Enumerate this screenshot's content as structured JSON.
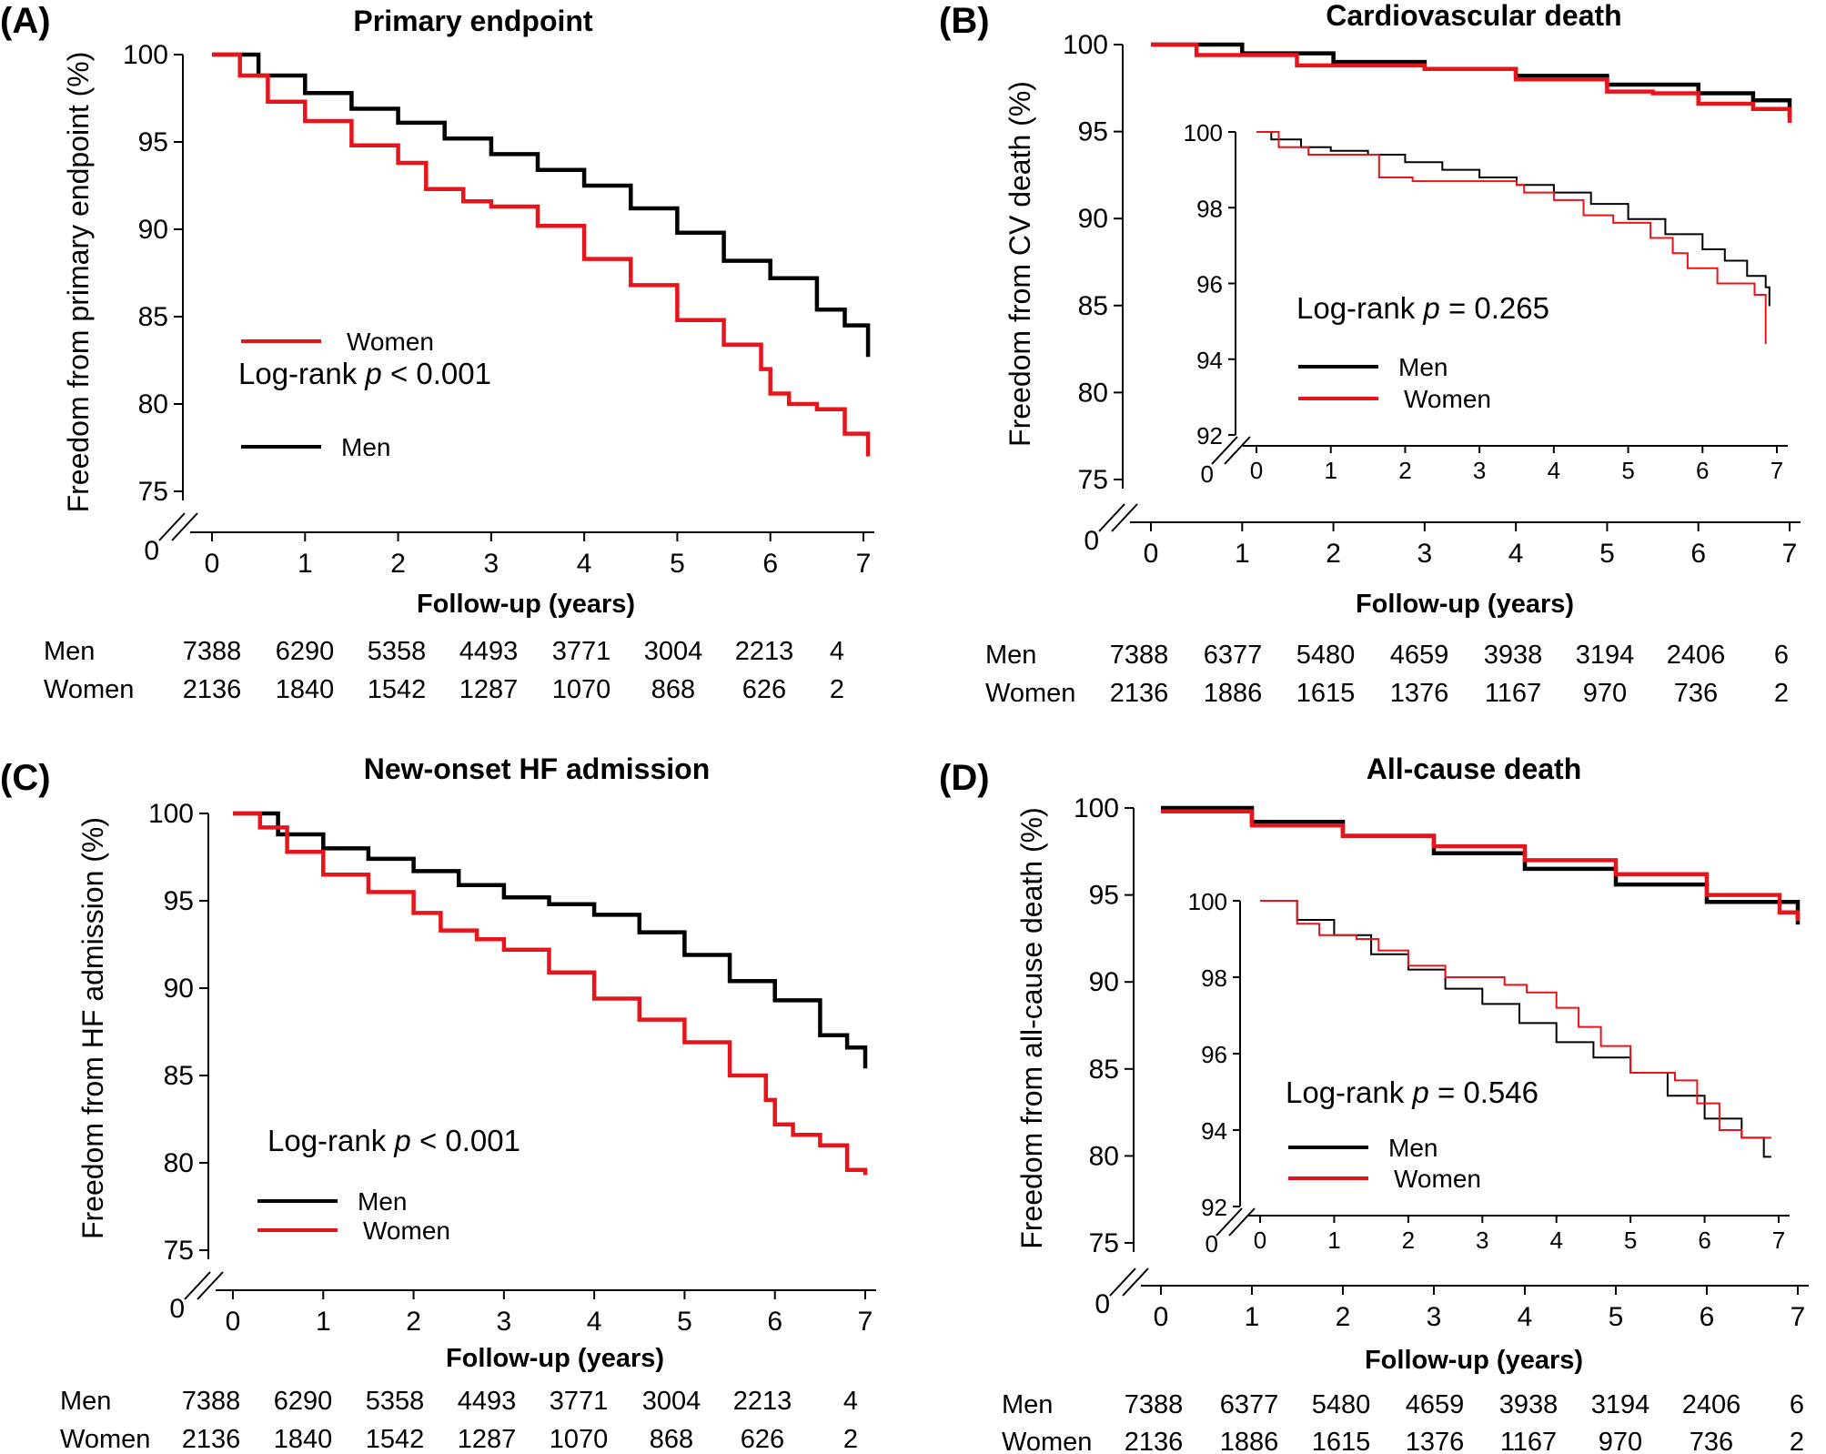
{
  "colors": {
    "men": "#000000",
    "women": "#e8141b"
  },
  "chart_data": [
    {
      "type": "line",
      "letter": "(A)",
      "title": "Primary endpoint",
      "ylabel": "Freedom from primary endpoint (%)",
      "xlabel": "Follow-up (years)",
      "xlim": [
        0,
        7
      ],
      "ylim": [
        75,
        100
      ],
      "y_ticks": [
        "100",
        "95",
        "90",
        "85",
        "80",
        "75"
      ],
      "y_break_label": "0",
      "x_ticks": [
        "0",
        "1",
        "2",
        "3",
        "4",
        "5",
        "6",
        "7"
      ],
      "pvalue": {
        "prefix": "Log-rank ",
        "p": "p",
        "suffix": " < 0.001"
      },
      "legend": [
        "Men",
        "Women"
      ],
      "series": [
        {
          "name": "Men",
          "x": [
            0,
            0.5,
            1,
            1.5,
            2,
            2.5,
            3,
            3.5,
            4,
            4.5,
            5,
            5.5,
            6,
            6.5,
            6.8,
            7.05
          ],
          "y": [
            100,
            98.8,
            97.8,
            96.9,
            96.1,
            95.2,
            94.3,
            93.4,
            92.5,
            91.2,
            89.8,
            88.2,
            87.2,
            85.4,
            84.5,
            82.7
          ]
        },
        {
          "name": "Women",
          "x": [
            0,
            0.3,
            0.6,
            1,
            1.5,
            2,
            2.3,
            2.7,
            3,
            3.5,
            4,
            4.5,
            5,
            5.5,
            5.9,
            6.0,
            6.2,
            6.5,
            6.8,
            7.0,
            7.05
          ],
          "y": [
            100,
            98.8,
            97.3,
            96.2,
            94.8,
            93.8,
            92.3,
            91.6,
            91.3,
            90.2,
            88.3,
            86.8,
            84.8,
            83.4,
            82.0,
            80.6,
            80.0,
            79.7,
            78.3,
            78.3,
            77.0
          ]
        }
      ],
      "risk_table": {
        "rows": [
          {
            "label": "Men",
            "values": [
              "7388",
              "6290",
              "5358",
              "4493",
              "3771",
              "3004",
              "2213",
              "4"
            ]
          },
          {
            "label": "Women",
            "values": [
              "2136",
              "1840",
              "1542",
              "1287",
              "1070",
              "868",
              "626",
              "2"
            ]
          }
        ]
      }
    },
    {
      "type": "line",
      "letter": "(B)",
      "title": "Cardiovascular death",
      "ylabel": "Freedom from CV death (%)",
      "xlabel": "Follow-up (years)",
      "xlim": [
        0,
        7
      ],
      "ylim": [
        75,
        100
      ],
      "y_ticks": [
        "100",
        "95",
        "90",
        "85",
        "80",
        "75"
      ],
      "y_break_label": "0",
      "x_ticks": [
        "0",
        "1",
        "2",
        "3",
        "4",
        "5",
        "6",
        "7"
      ],
      "series": [
        {
          "name": "Men",
          "x": [
            0,
            1,
            2,
            3,
            4,
            5,
            6,
            6.6,
            7.0
          ],
          "y": [
            100,
            99.5,
            99.0,
            98.6,
            98.2,
            97.7,
            97.2,
            96.8,
            95.8
          ]
        },
        {
          "name": "Women",
          "x": [
            0,
            0.5,
            1,
            1.6,
            2,
            3,
            4,
            5,
            5.5,
            6,
            6.6,
            7.0
          ],
          "y": [
            100,
            99.4,
            99.4,
            98.8,
            98.8,
            98.6,
            98.0,
            97.3,
            97.2,
            96.6,
            96.3,
            95.5
          ]
        }
      ],
      "inset": {
        "xlim": [
          0,
          7
        ],
        "ylim": [
          92,
          100
        ],
        "y_ticks": [
          "100",
          "98",
          "96",
          "94",
          "92"
        ],
        "y_break_label": "0",
        "x_ticks": [
          "0",
          "1",
          "2",
          "3",
          "4",
          "5",
          "6",
          "7"
        ],
        "pvalue": {
          "prefix": "Log-rank ",
          "p": "p",
          "suffix": " = 0.265"
        },
        "legend": [
          "Men",
          "Women"
        ],
        "series": [
          {
            "name": "Men",
            "x": [
              0,
              0.2,
              0.6,
              1,
              1.5,
              2,
              2.5,
              3,
              3.5,
              4,
              4.5,
              5,
              5.5,
              6,
              6.3,
              6.6,
              6.85,
              6.9
            ],
            "y": [
              100,
              99.8,
              99.6,
              99.5,
              99.4,
              99.2,
              99.0,
              98.8,
              98.6,
              98.4,
              98.1,
              97.7,
              97.3,
              96.9,
              96.6,
              96.2,
              95.9,
              95.4
            ]
          },
          {
            "name": "Women",
            "x": [
              0,
              0.3,
              0.7,
              1.0,
              1.5,
              1.65,
              2.0,
              2.1,
              2.7,
              3.5,
              3.6,
              4.0,
              4.4,
              4.8,
              5.3,
              5.6,
              5.8,
              6.2,
              6.7,
              6.85
            ],
            "y": [
              100,
              99.6,
              99.4,
              99.4,
              99.4,
              98.8,
              98.8,
              98.7,
              98.7,
              98.6,
              98.4,
              98.2,
              97.8,
              97.6,
              97.2,
              96.8,
              96.4,
              96.0,
              95.7,
              94.4
            ]
          }
        ]
      },
      "risk_table": {
        "rows": [
          {
            "label": "Men",
            "values": [
              "7388",
              "6377",
              "5480",
              "4659",
              "3938",
              "3194",
              "2406",
              "6"
            ]
          },
          {
            "label": "Women",
            "values": [
              "2136",
              "1886",
              "1615",
              "1376",
              "1167",
              "970",
              "736",
              "2"
            ]
          }
        ]
      }
    },
    {
      "type": "line",
      "letter": "(C)",
      "title": "New-onset HF admission",
      "ylabel": "Freedom from HF admission (%)",
      "xlabel": "Follow-up (years)",
      "xlim": [
        0,
        7
      ],
      "ylim": [
        75,
        100
      ],
      "y_ticks": [
        "100",
        "95",
        "90",
        "85",
        "80",
        "75"
      ],
      "y_break_label": "0",
      "x_ticks": [
        "0",
        "1",
        "2",
        "3",
        "4",
        "5",
        "6",
        "7"
      ],
      "pvalue": {
        "prefix": "Log-rank ",
        "p": "p",
        "suffix": " < 0.001"
      },
      "legend": [
        "Men",
        "Women"
      ],
      "series": [
        {
          "name": "Men",
          "x": [
            0,
            0.5,
            1,
            1.5,
            2,
            2.5,
            3,
            3.5,
            4,
            4.5,
            5,
            5.5,
            6,
            6.5,
            6.8,
            7.0
          ],
          "y": [
            100,
            98.8,
            98.0,
            97.4,
            96.7,
            95.9,
            95.2,
            94.8,
            94.2,
            93.2,
            91.9,
            90.4,
            89.3,
            87.3,
            86.6,
            85.4
          ]
        },
        {
          "name": "Women",
          "x": [
            0,
            0.3,
            0.6,
            1,
            1.5,
            2,
            2.3,
            2.7,
            3,
            3.5,
            4,
            4.5,
            5,
            5.5,
            5.9,
            6.0,
            6.2,
            6.5,
            6.8,
            7.0
          ],
          "y": [
            100,
            99.2,
            97.8,
            96.5,
            95.5,
            94.3,
            93.3,
            92.8,
            92.2,
            90.9,
            89.4,
            88.2,
            86.9,
            85.0,
            83.6,
            82.2,
            81.6,
            81.0,
            79.6,
            79.3
          ]
        }
      ],
      "risk_table": {
        "rows": [
          {
            "label": "Men",
            "values": [
              "7388",
              "6290",
              "5358",
              "4493",
              "3771",
              "3004",
              "2213",
              "4"
            ]
          },
          {
            "label": "Women",
            "values": [
              "2136",
              "1840",
              "1542",
              "1287",
              "1070",
              "868",
              "626",
              "2"
            ]
          }
        ]
      }
    },
    {
      "type": "line",
      "letter": "(D)",
      "title": "All-cause death",
      "ylabel": "Freedom from all-cause death (%)",
      "xlabel": "Follow-up (years)",
      "xlim": [
        0,
        7
      ],
      "ylim": [
        75,
        100
      ],
      "y_ticks": [
        "100",
        "95",
        "90",
        "85",
        "80",
        "75"
      ],
      "y_break_label": "0",
      "x_ticks": [
        "0",
        "1",
        "2",
        "3",
        "4",
        "5",
        "6",
        "7"
      ],
      "series": [
        {
          "name": "Men",
          "x": [
            0,
            1,
            2,
            3,
            4,
            5,
            6,
            7.0
          ],
          "y": [
            100,
            99.2,
            98.4,
            97.4,
            96.5,
            95.6,
            94.6,
            93.3
          ]
        },
        {
          "name": "Women",
          "x": [
            0,
            1,
            2,
            3,
            4,
            5,
            6,
            6.8,
            7.0
          ],
          "y": [
            99.8,
            99.0,
            98.4,
            97.8,
            97.0,
            96.2,
            95.0,
            94.0,
            93.5
          ]
        }
      ],
      "inset": {
        "xlim": [
          0,
          7
        ],
        "ylim": [
          92,
          100
        ],
        "y_ticks": [
          "100",
          "98",
          "96",
          "94",
          "92"
        ],
        "y_break_label": "0",
        "x_ticks": [
          "0",
          "1",
          "2",
          "3",
          "4",
          "5",
          "6",
          "7"
        ],
        "pvalue": {
          "prefix": "Log-rank ",
          "p": "p",
          "suffix": " = 0.546"
        },
        "legend": [
          "Men",
          "Women"
        ],
        "series": [
          {
            "name": "Men",
            "x": [
              0,
              0.5,
              1,
              1.5,
              2,
              2.5,
              3,
              3.5,
              4,
              4.5,
              5,
              5.5,
              6,
              6.5,
              6.8,
              6.9
            ],
            "y": [
              100,
              99.5,
              99.1,
              98.6,
              98.2,
              97.7,
              97.3,
              96.8,
              96.3,
              95.9,
              95.5,
              94.9,
              94.3,
              93.8,
              93.3,
              93.3
            ]
          },
          {
            "name": "Women",
            "x": [
              0,
              0.5,
              0.8,
              1.3,
              1.6,
              2.0,
              2.5,
              2.9,
              3.3,
              3.6,
              4.0,
              4.3,
              4.6,
              5.0,
              5.6,
              5.9,
              6.2,
              6.5,
              6.9
            ],
            "y": [
              100,
              99.4,
              99.1,
              99.0,
              98.7,
              98.3,
              98.0,
              98.0,
              97.8,
              97.6,
              97.2,
              96.7,
              96.2,
              95.5,
              95.3,
              94.7,
              94.0,
              93.8,
              93.8
            ]
          }
        ]
      },
      "risk_table": {
        "rows": [
          {
            "label": "Men",
            "values": [
              "7388",
              "6377",
              "5480",
              "4659",
              "3938",
              "3194",
              "2406",
              "6"
            ]
          },
          {
            "label": "Women",
            "values": [
              "2136",
              "1886",
              "1615",
              "1376",
              "1167",
              "970",
              "736",
              "2"
            ]
          }
        ]
      }
    }
  ]
}
